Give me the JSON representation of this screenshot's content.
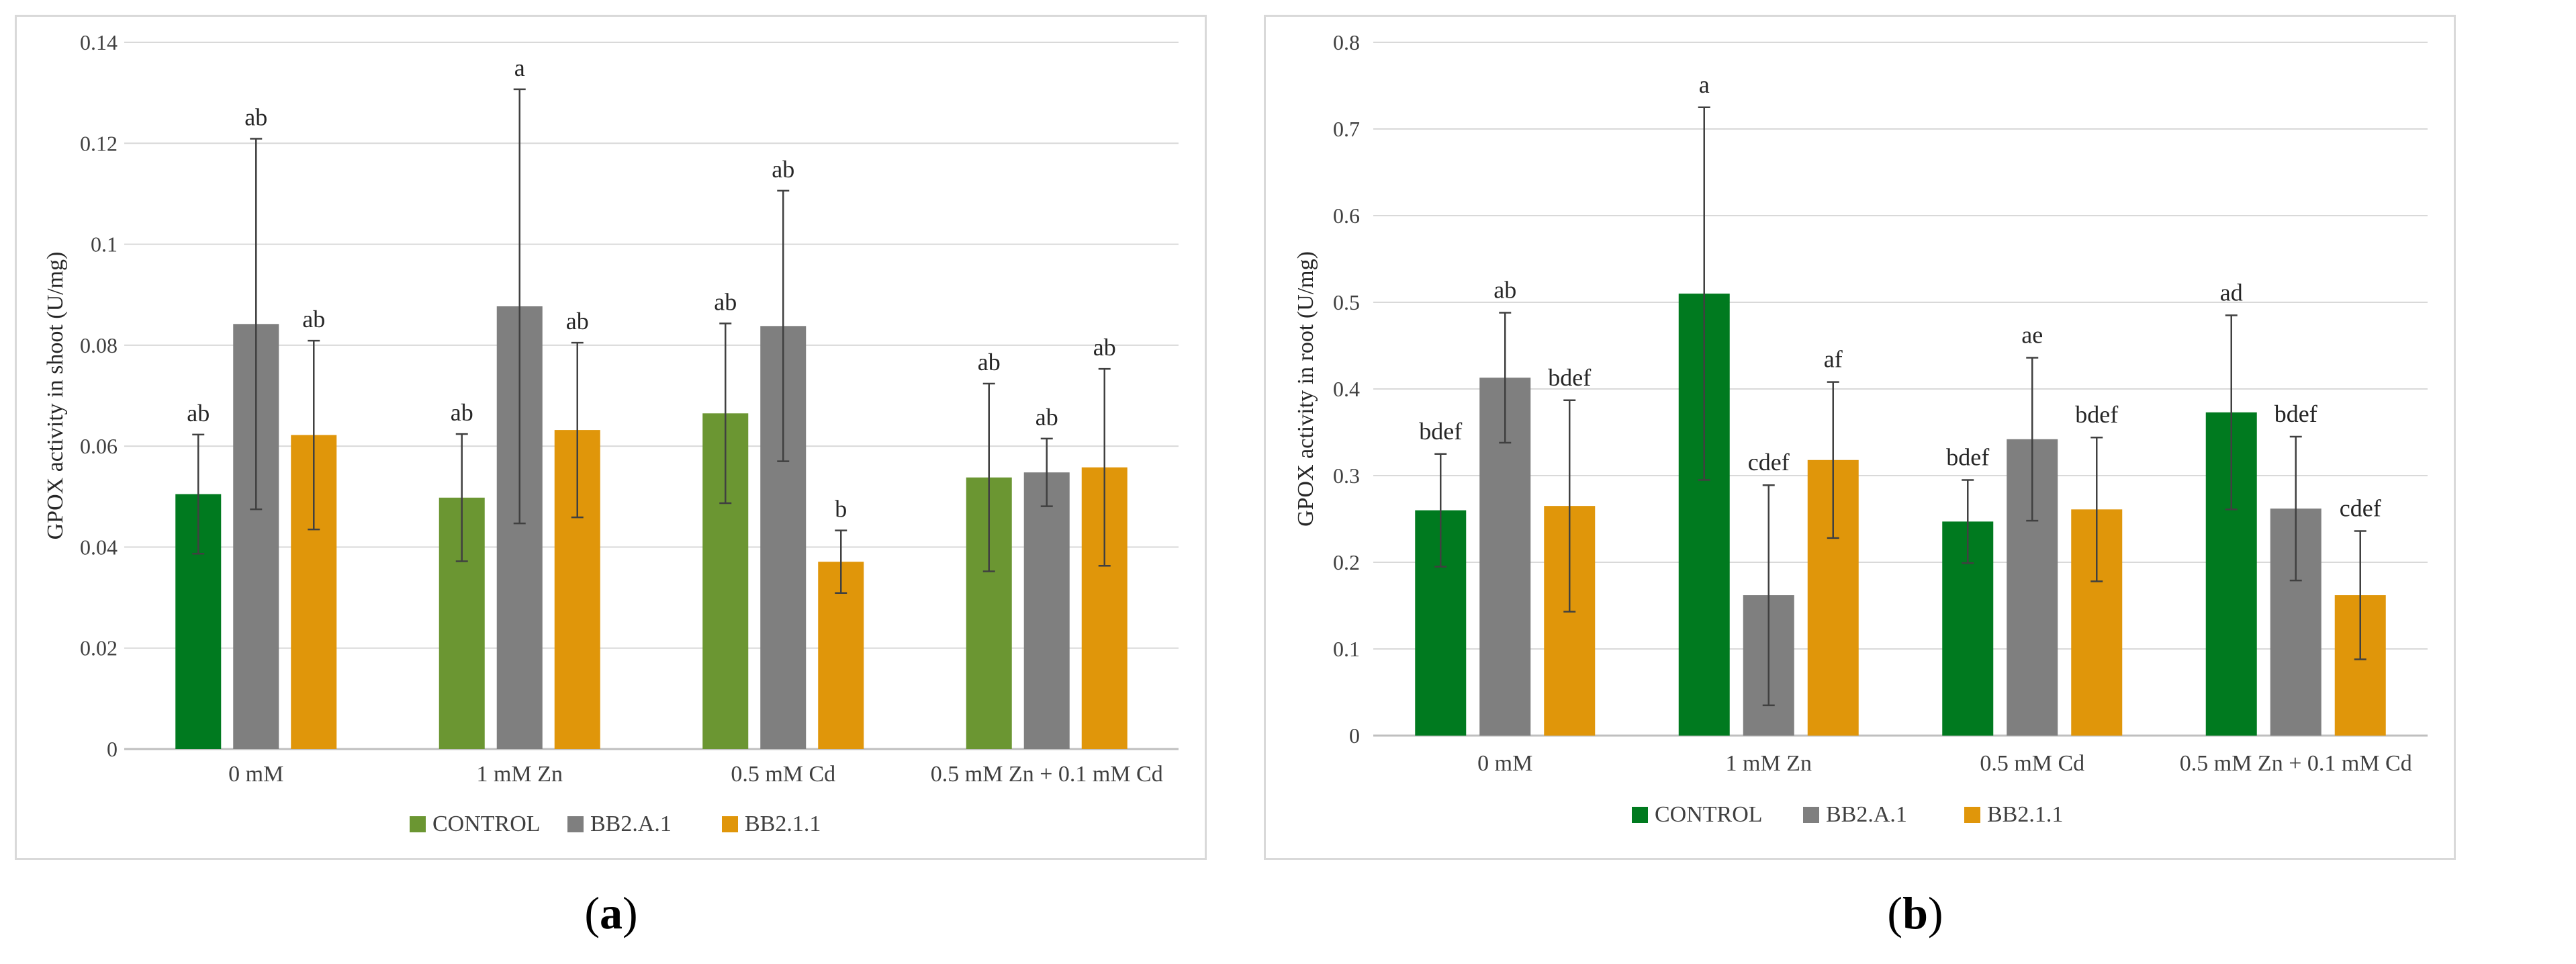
{
  "charts": [
    {
      "id": "a",
      "panel_label": "a",
      "ylabel": "GPOX activity in shoot (U/mg)",
      "ylim": [
        0,
        0.14
      ],
      "yticks": [
        0,
        0.02,
        0.04,
        0.06,
        0.08,
        0.1,
        0.12,
        0.14
      ],
      "ytick_labels": [
        "0",
        "0.02",
        "0.04",
        "0.06",
        "0.08",
        "0.1",
        "0.12",
        "0.14"
      ],
      "categories": [
        "0 mM",
        "1 mM Zn",
        "0.5 mM Cd",
        "0.5 mM Zn + 0.1 mM Cd"
      ],
      "series": [
        {
          "name": "CONTROL",
          "colors": [
            "#007a1f",
            "#6b9632",
            "#6b9632",
            "#6b9632"
          ],
          "legend_color": "#6b9632",
          "values": [
            0.0505,
            0.0498,
            0.0665,
            0.0538
          ],
          "errors": [
            0.0118,
            0.0126,
            0.0178,
            0.0186
          ],
          "letters": [
            "ab",
            "ab",
            "ab",
            "ab"
          ]
        },
        {
          "name": "BB2.A.1",
          "colors": [
            "#7f7f7f",
            "#7f7f7f",
            "#7f7f7f",
            "#7f7f7f"
          ],
          "legend_color": "#7f7f7f",
          "values": [
            0.0842,
            0.0877,
            0.0838,
            0.0548
          ],
          "errors": [
            0.0367,
            0.043,
            0.0268,
            0.0067
          ],
          "letters": [
            "ab",
            "a",
            "ab",
            "ab"
          ]
        },
        {
          "name": "BB2.1.1",
          "colors": [
            "#e0960a",
            "#e0960a",
            "#e0960a",
            "#e0960a"
          ],
          "legend_color": "#e0960a",
          "values": [
            0.0622,
            0.0632,
            0.0371,
            0.0558
          ],
          "errors": [
            0.0187,
            0.0173,
            0.0062,
            0.0195
          ],
          "letters": [
            "ab",
            "ab",
            "b",
            "ab"
          ]
        }
      ]
    },
    {
      "id": "b",
      "panel_label": "b",
      "ylabel": "GPOX activity in root (U/mg)",
      "ylim": [
        0,
        0.8
      ],
      "yticks": [
        0,
        0.1,
        0.2,
        0.3,
        0.4,
        0.5,
        0.6,
        0.7,
        0.8
      ],
      "ytick_labels": [
        "0",
        "0.1",
        "0.2",
        "0.3",
        "0.4",
        "0.5",
        "0.6",
        "0.7",
        "0.8"
      ],
      "categories": [
        "0 mM",
        "1 mM Zn",
        "0.5 mM Cd",
        "0.5 mM Zn + 0.1 mM Cd"
      ],
      "series": [
        {
          "name": "CONTROL",
          "colors": [
            "#007a1f",
            "#007a1f",
            "#007a1f",
            "#007a1f"
          ],
          "legend_color": "#007a1f",
          "values": [
            0.26,
            0.51,
            0.247,
            0.373
          ],
          "errors": [
            0.065,
            0.215,
            0.048,
            0.112
          ],
          "letters": [
            "bdef",
            "a",
            "bdef",
            "ad"
          ]
        },
        {
          "name": "BB2.A.1",
          "colors": [
            "#7f7f7f",
            "#7f7f7f",
            "#7f7f7f",
            "#7f7f7f"
          ],
          "legend_color": "#7f7f7f",
          "values": [
            0.413,
            0.162,
            0.342,
            0.262
          ],
          "errors": [
            0.075,
            0.127,
            0.094,
            0.083
          ],
          "letters": [
            "ab",
            "cdef",
            "ae",
            "bdef"
          ]
        },
        {
          "name": "BB2.1.1",
          "colors": [
            "#e0960a",
            "#e0960a",
            "#e0960a",
            "#e0960a"
          ],
          "legend_color": "#e0960a",
          "values": [
            0.265,
            0.318,
            0.261,
            0.162
          ],
          "errors": [
            0.122,
            0.09,
            0.083,
            0.074
          ],
          "letters": [
            "bdef",
            "af",
            "bdef",
            "cdef"
          ]
        }
      ]
    }
  ]
}
